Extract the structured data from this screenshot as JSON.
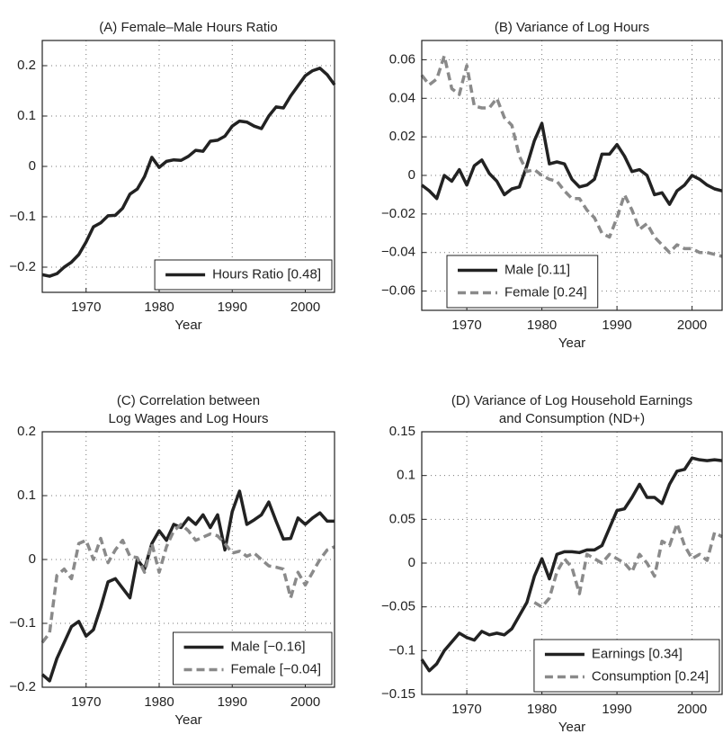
{
  "chart_data": [
    {
      "type": "line",
      "title": [
        "(A) Female–Male Hours Ratio"
      ],
      "xlabel": "Year",
      "x": [
        1964,
        1965,
        1966,
        1967,
        1968,
        1969,
        1970,
        1971,
        1972,
        1973,
        1974,
        1975,
        1976,
        1977,
        1978,
        1979,
        1980,
        1981,
        1982,
        1983,
        1984,
        1985,
        1986,
        1987,
        1988,
        1989,
        1990,
        1991,
        1992,
        1993,
        1994,
        1995,
        1996,
        1997,
        1998,
        1999,
        2000,
        2001,
        2002,
        2003,
        2004
      ],
      "xlim": [
        1964,
        2004
      ],
      "xticks": [
        1970,
        1980,
        1990,
        2000
      ],
      "ylim": [
        -0.25,
        0.25
      ],
      "yticks": [
        {
          "value": -0.2,
          "label": "−0.2"
        },
        {
          "value": -0.1,
          "label": "−0.1"
        },
        0,
        0.1,
        0.2
      ],
      "grid": true,
      "legend": "lower right",
      "series": [
        {
          "name": "Hours Ratio [0.48]",
          "color": "#222222",
          "linestyle": "solid",
          "values": [
            -0.215,
            -0.218,
            -0.213,
            -0.2,
            -0.19,
            -0.175,
            -0.15,
            -0.12,
            -0.112,
            -0.098,
            -0.097,
            -0.083,
            -0.055,
            -0.045,
            -0.02,
            0.018,
            -0.002,
            0.01,
            0.013,
            0.012,
            0.02,
            0.032,
            0.03,
            0.05,
            0.052,
            0.06,
            0.08,
            0.09,
            0.088,
            0.08,
            0.075,
            0.1,
            0.118,
            0.116,
            0.14,
            0.16,
            0.18,
            0.19,
            0.195,
            0.182,
            0.162
          ]
        }
      ]
    },
    {
      "type": "line",
      "title": [
        "(B) Variance of Log Hours"
      ],
      "xlabel": "Year",
      "x": [
        1964,
        1965,
        1966,
        1967,
        1968,
        1969,
        1970,
        1971,
        1972,
        1973,
        1974,
        1975,
        1976,
        1977,
        1978,
        1979,
        1980,
        1981,
        1982,
        1983,
        1984,
        1985,
        1986,
        1987,
        1988,
        1989,
        1990,
        1991,
        1992,
        1993,
        1994,
        1995,
        1996,
        1997,
        1998,
        1999,
        2000,
        2001,
        2002,
        2003,
        2004
      ],
      "xlim": [
        1964,
        2004
      ],
      "xticks": [
        1970,
        1980,
        1990,
        2000
      ],
      "ylim": [
        -0.07,
        0.07
      ],
      "yticks": [
        {
          "value": -0.06,
          "label": "−0.06"
        },
        {
          "value": -0.04,
          "label": "−0.04"
        },
        {
          "value": -0.02,
          "label": "−0.02"
        },
        0,
        0.02,
        0.04,
        0.06
      ],
      "grid": true,
      "legend": "lower left",
      "series": [
        {
          "name": "Male [0.11]",
          "color": "#222222",
          "linestyle": "solid",
          "values": [
            -0.005,
            -0.008,
            -0.012,
            0,
            -0.003,
            0.003,
            -0.005,
            0.005,
            0.008,
            0.001,
            -0.003,
            -0.01,
            -0.007,
            -0.006,
            0.005,
            0.018,
            0.027,
            0.006,
            0.007,
            0.006,
            -0.002,
            -0.006,
            -0.005,
            -0.002,
            0.011,
            0.011,
            0.016,
            0.01,
            0.002,
            0.003,
            0,
            -0.01,
            -0.009,
            -0.015,
            -0.008,
            -0.005,
            0,
            -0.002,
            -0.005,
            -0.007,
            -0.008
          ]
        },
        {
          "name": "Female [0.24]",
          "color": "#8a8a8a",
          "linestyle": "dashed",
          "values": [
            0.052,
            0.047,
            0.05,
            0.062,
            0.045,
            0.042,
            0.057,
            0.036,
            0.035,
            0.035,
            0.04,
            0.03,
            0.026,
            0.01,
            0.002,
            0.003,
            0,
            -0.002,
            -0.003,
            -0.008,
            -0.012,
            -0.012,
            -0.018,
            -0.022,
            -0.03,
            -0.032,
            -0.022,
            -0.01,
            -0.018,
            -0.028,
            -0.025,
            -0.032,
            -0.036,
            -0.04,
            -0.036,
            -0.038,
            -0.038,
            -0.04,
            -0.04,
            -0.041,
            -0.042
          ]
        }
      ]
    },
    {
      "type": "line",
      "title": [
        "(C) Correlation between",
        "Log Wages and Log Hours"
      ],
      "xlabel": "Year",
      "x": [
        1964,
        1965,
        1966,
        1967,
        1968,
        1969,
        1970,
        1971,
        1972,
        1973,
        1974,
        1975,
        1976,
        1977,
        1978,
        1979,
        1980,
        1981,
        1982,
        1983,
        1984,
        1985,
        1986,
        1987,
        1988,
        1989,
        1990,
        1991,
        1992,
        1993,
        1994,
        1995,
        1996,
        1997,
        1998,
        1999,
        2000,
        2001,
        2002,
        2003,
        2004
      ],
      "xlim": [
        1964,
        2004
      ],
      "xticks": [
        1970,
        1980,
        1990,
        2000
      ],
      "ylim": [
        -0.2,
        0.2
      ],
      "yticks": [
        {
          "value": -0.2,
          "label": "−0.2"
        },
        {
          "value": -0.1,
          "label": "−0.1"
        },
        0,
        0.1,
        0.2
      ],
      "grid": true,
      "legend": "lower right",
      "series": [
        {
          "name": "Male [−0.16]",
          "color": "#222222",
          "linestyle": "solid",
          "values": [
            -0.18,
            -0.19,
            -0.155,
            -0.13,
            -0.105,
            -0.097,
            -0.12,
            -0.11,
            -0.075,
            -0.035,
            -0.03,
            -0.045,
            -0.06,
            0,
            -0.015,
            0.025,
            0.045,
            0.03,
            0.055,
            0.05,
            0.065,
            0.055,
            0.07,
            0.05,
            0.07,
            0.015,
            0.075,
            0.107,
            0.055,
            0.062,
            0.07,
            0.09,
            0.06,
            0.032,
            0.033,
            0.065,
            0.055,
            0.065,
            0.073,
            0.06,
            0.06
          ]
        },
        {
          "name": "Female [−0.04]",
          "color": "#8a8a8a",
          "linestyle": "dashed",
          "values": [
            -0.13,
            -0.115,
            -0.025,
            -0.015,
            -0.03,
            0.025,
            0.03,
            0,
            0.033,
            -0.005,
            0.015,
            0.03,
            0.005,
            0.003,
            -0.02,
            0.025,
            -0.02,
            0.02,
            0.045,
            0.055,
            0.045,
            0.03,
            0.035,
            0.04,
            0.037,
            0.025,
            0.01,
            0.013,
            0.005,
            0.01,
            0,
            -0.01,
            -0.012,
            -0.015,
            -0.06,
            -0.02,
            -0.04,
            -0.02,
            0,
            0.015,
            0.02
          ]
        }
      ]
    },
    {
      "type": "line",
      "title": [
        "(D) Variance of Log Household Earnings",
        "and Consumption (ND+)"
      ],
      "xlabel": "Year",
      "x": [
        1964,
        1965,
        1966,
        1967,
        1968,
        1969,
        1970,
        1971,
        1972,
        1973,
        1974,
        1975,
        1976,
        1977,
        1978,
        1979,
        1980,
        1981,
        1982,
        1983,
        1984,
        1985,
        1986,
        1987,
        1988,
        1989,
        1990,
        1991,
        1992,
        1993,
        1994,
        1995,
        1996,
        1997,
        1998,
        1999,
        2000,
        2001,
        2002,
        2003,
        2004
      ],
      "xlim": [
        1964,
        2004
      ],
      "xticks": [
        1970,
        1980,
        1990,
        2000
      ],
      "ylim": [
        -0.15,
        0.15
      ],
      "yticks": [
        {
          "value": -0.15,
          "label": "−0.15"
        },
        {
          "value": -0.1,
          "label": "−0.1"
        },
        {
          "value": -0.05,
          "label": "−0.05"
        },
        0,
        0.05,
        0.1,
        0.15
      ],
      "grid": true,
      "legend": "lower right",
      "series": [
        {
          "name": "Earnings [0.34]",
          "color": "#222222",
          "linestyle": "solid",
          "values": [
            -0.11,
            -0.123,
            -0.115,
            -0.1,
            -0.09,
            -0.08,
            -0.085,
            -0.088,
            -0.078,
            -0.082,
            -0.08,
            -0.082,
            -0.075,
            -0.06,
            -0.045,
            -0.015,
            0.005,
            -0.018,
            0.01,
            0.013,
            0.013,
            0.012,
            0.015,
            0.015,
            0.02,
            0.04,
            0.06,
            0.062,
            0.075,
            0.09,
            0.075,
            0.075,
            0.068,
            0.09,
            0.105,
            0.107,
            0.12,
            0.118,
            0.117,
            0.118,
            0.117
          ]
        },
        {
          "name": "Consumption [0.24]",
          "color": "#8a8a8a",
          "linestyle": "dashed",
          "values": [
            null,
            null,
            null,
            null,
            null,
            null,
            null,
            null,
            null,
            null,
            null,
            null,
            null,
            null,
            null,
            -0.045,
            -0.05,
            -0.04,
            -0.01,
            0.005,
            -0.005,
            -0.035,
            0.01,
            0.005,
            0,
            0.01,
            0.005,
            0,
            -0.01,
            0.01,
            0,
            -0.015,
            0.025,
            0.02,
            0.045,
            0.02,
            0.005,
            0.01,
            0.003,
            0.035,
            0.03
          ]
        }
      ]
    }
  ]
}
